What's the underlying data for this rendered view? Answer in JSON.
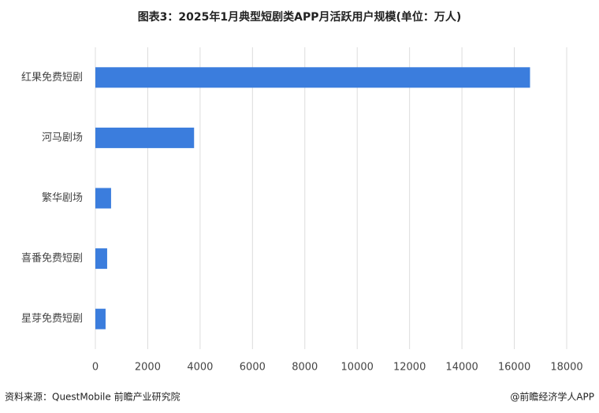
{
  "chart_data": {
    "type": "bar",
    "horizontal": true,
    "title": "图表3：2025年1月典型短剧类APP月活跃用户规模(单位：万人)",
    "categories": [
      "红果免费短剧",
      "河马剧场",
      "繁华剧场",
      "喜番免费短剧",
      "星芽免费短剧"
    ],
    "values": [
      16600,
      3770,
      600,
      450,
      390
    ],
    "color": "#3b7ddd",
    "xlim": [
      0,
      18000
    ],
    "xticks": [
      0,
      2000,
      4000,
      6000,
      8000,
      10000,
      12000,
      14000,
      16000,
      18000
    ],
    "grid": true,
    "source": "资料来源：QuestMobile 前瞻产业研究院",
    "credit": "@前瞻经济学人APP"
  }
}
